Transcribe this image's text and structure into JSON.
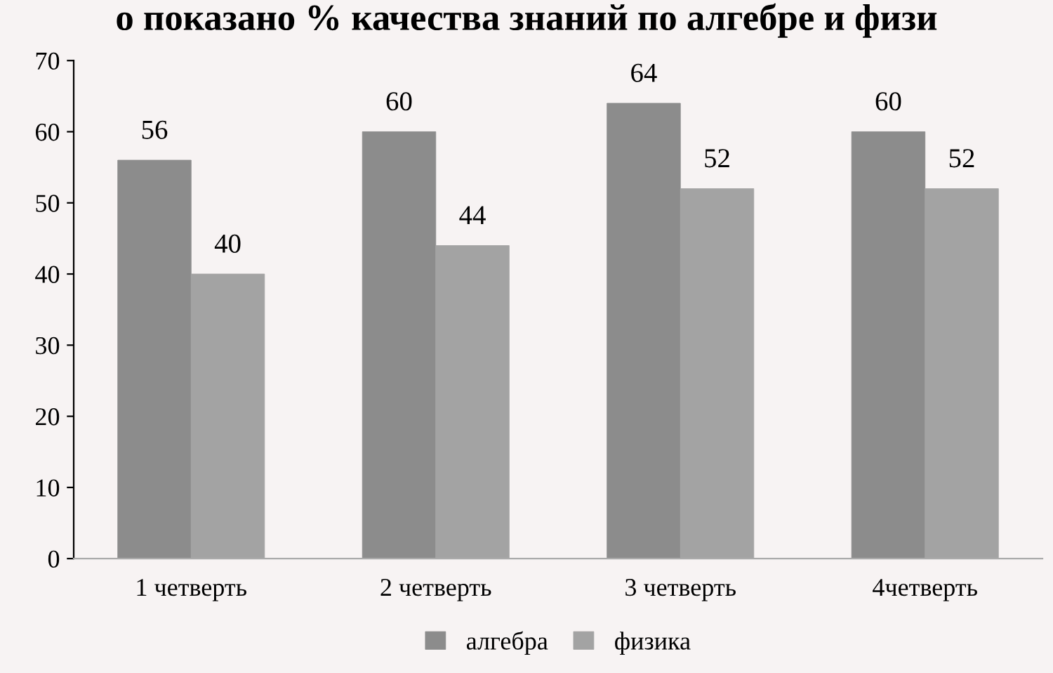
{
  "chart_data": {
    "type": "bar",
    "title": "о показано % качества знаний по алгебре и физи",
    "categories": [
      "1 четверть",
      "2 четверть",
      "3 четверть",
      "4четверть"
    ],
    "series": [
      {
        "name": "алгебра",
        "color": "#8c8c8c",
        "values": [
          56,
          60,
          64,
          60
        ]
      },
      {
        "name": "физика",
        "color": "#a3a3a3",
        "values": [
          40,
          44,
          52,
          52
        ]
      }
    ],
    "ylim": [
      0,
      70
    ],
    "yticks": [
      0,
      10,
      20,
      30,
      40,
      50,
      60,
      70
    ],
    "grid": false,
    "legend": "bottom",
    "data_labels": true
  }
}
